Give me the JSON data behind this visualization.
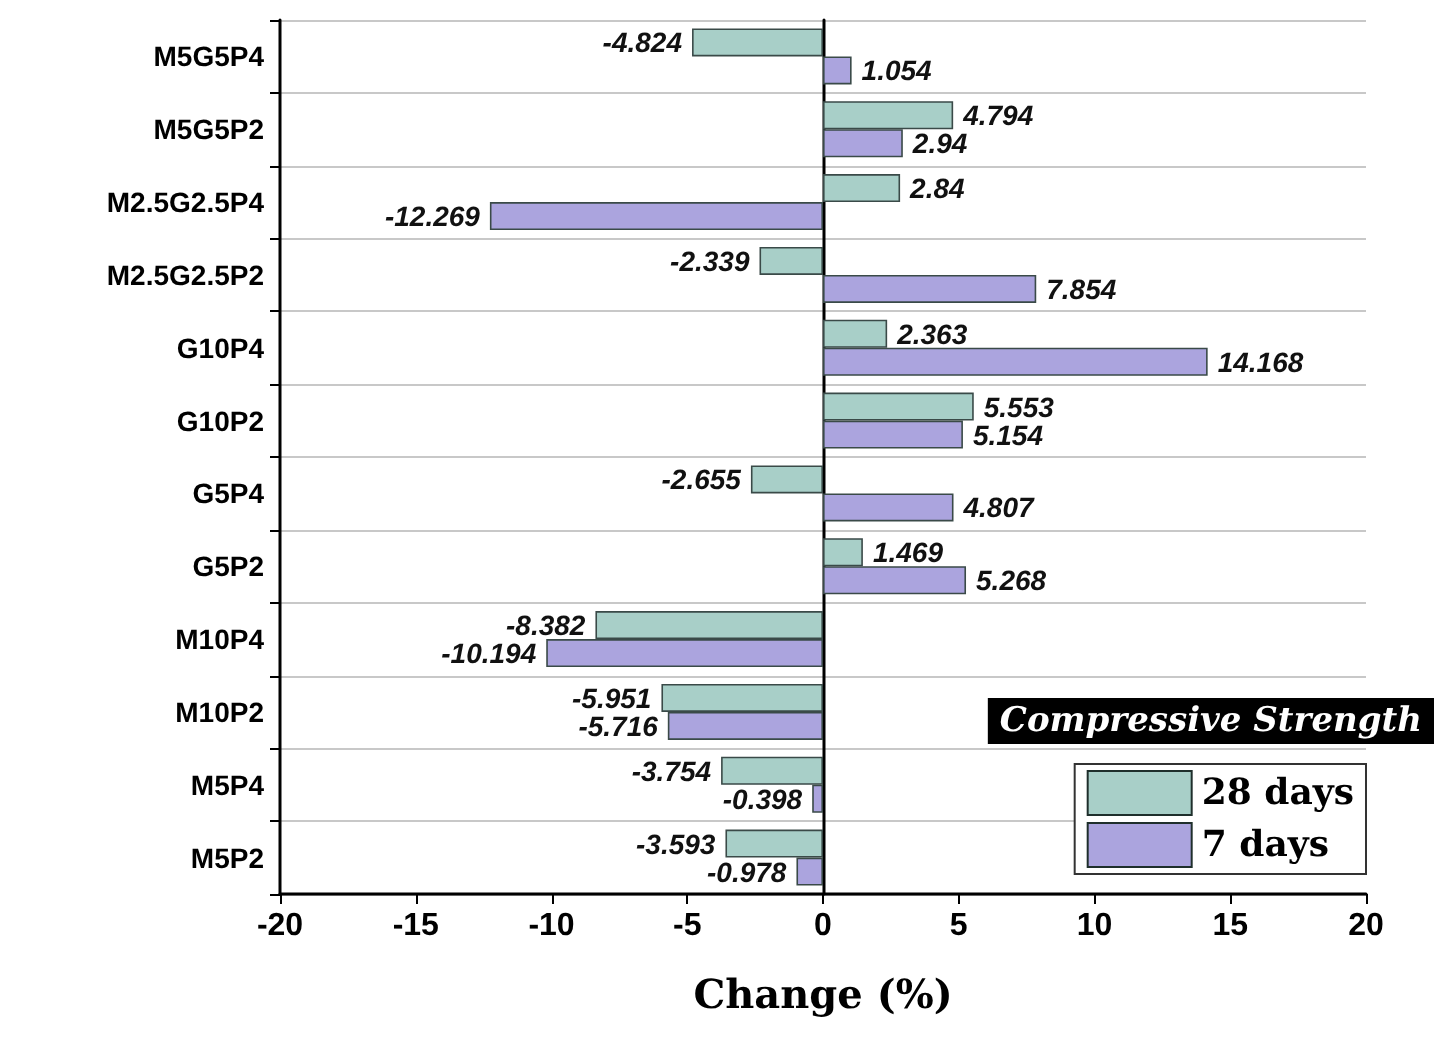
{
  "chart_data": {
    "type": "bar",
    "orientation": "horizontal",
    "xlabel": "Change (%)",
    "legend_title": "Compressive Strength",
    "categories": [
      "M5G5P4",
      "M5G5P2",
      "M2.5G2.5P4",
      "M2.5G2.5P2",
      "G10P4",
      "G10P2",
      "G5P4",
      "G5P2",
      "M10P4",
      "M10P2",
      "M5P4",
      "M5P2"
    ],
    "series": [
      {
        "name": "28 days",
        "color": "#a8cfc8",
        "values": [
          -4.824,
          4.794,
          2.84,
          -2.339,
          2.363,
          5.553,
          -2.655,
          1.469,
          -8.382,
          -5.951,
          -3.754,
          -3.593
        ]
      },
      {
        "name": "7 days",
        "color": "#aba4de",
        "values": [
          1.054,
          2.94,
          -12.269,
          7.854,
          14.168,
          5.154,
          4.807,
          5.268,
          -10.194,
          -5.716,
          -0.398,
          -0.978
        ]
      }
    ],
    "xlim": [
      -20,
      20
    ],
    "xticks": [
      -20,
      -15,
      -10,
      -5,
      0,
      5,
      10,
      15,
      20
    ],
    "grid": "y",
    "legend": "bottom right",
    "data_labels": true
  }
}
